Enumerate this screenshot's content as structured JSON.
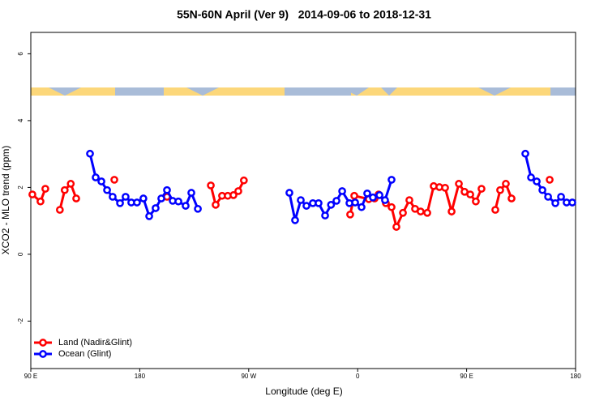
{
  "chart_data": {
    "type": "line",
    "title": "55N-60N April (Ver 9)   2014-09-06 to 2018-12-31",
    "x_label": "Longitude (deg E)",
    "y_label": "XCO2 - MLO trend (ppm)",
    "xlim": [
      90,
      540
    ],
    "ylim": [
      -3.42,
      6.64
    ],
    "xticks": [
      {
        "value": 90,
        "label": "90 E"
      },
      180,
      {
        "value": 270,
        "label": "90 W"
      },
      {
        "value": 360,
        "label": "0"
      },
      {
        "value": 450,
        "label": "90 E"
      },
      {
        "value": 540,
        "label": "180"
      }
    ],
    "yticks": [
      -2,
      0,
      2,
      4,
      6
    ],
    "grid": false,
    "legend": "bottom-left",
    "series": [
      {
        "name": "Land (Nadir&Glint)",
        "color": "#ff0000",
        "x": [
          91.3,
          98,
          102,
          null,
          114,
          118,
          123,
          127.5,
          null,
          159,
          null,
          202.5,
          null,
          238.7,
          242.7,
          248,
          252.7,
          257.4,
          261.4,
          266,
          null,
          353.8,
          357.2,
          369.2,
          374,
          377.3,
          383.3,
          388,
          392,
          397.4,
          402.7,
          407.4,
          412,
          417.5,
          422.8,
          427.5,
          432.2,
          437.6,
          443.6,
          448.3,
          453,
          457.6,
          462.3,
          null,
          473.7,
          477.7,
          482.4,
          487.1,
          null,
          518.6
        ],
        "values": [
          1.79,
          1.58,
          1.96,
          null,
          1.33,
          1.92,
          2.11,
          1.67,
          null,
          2.23,
          null,
          1.72,
          null,
          2.06,
          1.48,
          1.75,
          1.75,
          1.77,
          1.89,
          2.21,
          null,
          1.19,
          1.75,
          1.65,
          1.67,
          1.79,
          1.53,
          1.41,
          0.82,
          1.24,
          1.62,
          1.36,
          1.28,
          1.24,
          2.04,
          2.01,
          1.99,
          1.28,
          2.11,
          1.87,
          1.79,
          1.58,
          1.96,
          null,
          1.33,
          1.92,
          2.11,
          1.67,
          null,
          2.23
        ]
      },
      {
        "name": "Ocean (Glint)",
        "color": "#0000ff",
        "x": [
          138.9,
          143.6,
          148.3,
          153,
          157.6,
          163.7,
          168.3,
          173,
          177.7,
          183,
          187.8,
          193.1,
          197.8,
          202.5,
          207.2,
          211.9,
          217.9,
          222.6,
          228,
          null,
          303.6,
          308.3,
          313,
          317.7,
          323,
          327.7,
          333.1,
          338,
          342.5,
          347.2,
          353.2,
          357.9,
          363.2,
          367.9,
          372.6,
          378,
          382.6,
          388,
          null,
          498.5,
          503.2,
          507.9,
          512.6,
          517.3,
          523.3,
          528,
          532.6,
          537.3
        ],
        "values": [
          3.01,
          2.3,
          2.18,
          1.92,
          1.72,
          1.53,
          1.72,
          1.55,
          1.55,
          1.67,
          1.14,
          1.38,
          1.67,
          1.92,
          1.6,
          1.58,
          1.45,
          1.84,
          1.36,
          null,
          1.84,
          1.02,
          1.62,
          1.45,
          1.53,
          1.53,
          1.16,
          1.48,
          1.6,
          1.89,
          1.53,
          1.55,
          1.41,
          1.82,
          1.7,
          1.77,
          1.62,
          2.23,
          null,
          3.01,
          2.3,
          2.18,
          1.92,
          1.72,
          1.53,
          1.72,
          1.55,
          1.55
        ]
      }
    ]
  }
}
